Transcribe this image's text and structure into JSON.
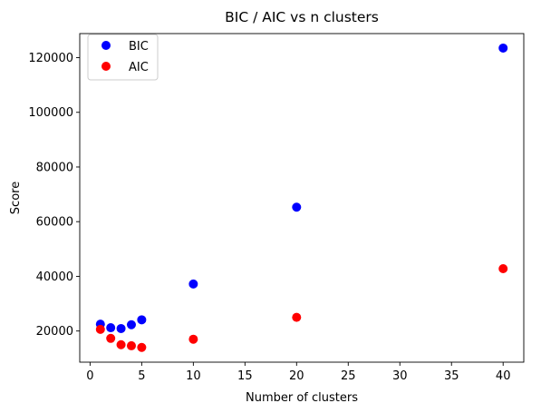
{
  "chart_data": {
    "type": "scatter",
    "title": "BIC / AIC vs n clusters",
    "xlabel": "Number of clusters",
    "ylabel": "Score",
    "xlim": [
      -1.0,
      42.0
    ],
    "ylim": [
      8600,
      128800
    ],
    "xticks": [
      0,
      5,
      10,
      15,
      20,
      25,
      30,
      35,
      40
    ],
    "yticks": [
      20000,
      40000,
      60000,
      80000,
      100000,
      120000
    ],
    "grid": false,
    "legend_position": "top-left",
    "series": [
      {
        "name": "BIC",
        "color": "#0000ff",
        "x": [
          1,
          2,
          3,
          4,
          5,
          10,
          20,
          40
        ],
        "y": [
          22500,
          21200,
          20900,
          22300,
          24100,
          37200,
          65300,
          123500
        ]
      },
      {
        "name": "AIC",
        "color": "#ff0000",
        "x": [
          1,
          2,
          3,
          4,
          5,
          10,
          20,
          40
        ],
        "y": [
          20600,
          17300,
          15000,
          14600,
          14000,
          17000,
          25000,
          42800
        ]
      }
    ]
  }
}
